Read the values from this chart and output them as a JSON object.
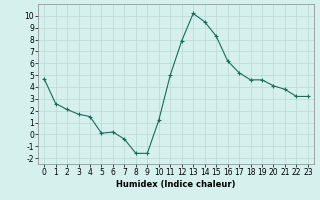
{
  "x": [
    0,
    1,
    2,
    3,
    4,
    5,
    6,
    7,
    8,
    9,
    10,
    11,
    12,
    13,
    14,
    15,
    16,
    17,
    18,
    19,
    20,
    21,
    22,
    23
  ],
  "y": [
    4.7,
    2.6,
    2.1,
    1.7,
    1.5,
    0.1,
    0.2,
    -0.4,
    -1.6,
    -1.6,
    1.2,
    5.0,
    7.9,
    10.2,
    9.5,
    8.3,
    6.2,
    5.2,
    4.6,
    4.6,
    4.1,
    3.8,
    3.2,
    3.2
  ],
  "line_color": "#1a6b5a",
  "marker": "+",
  "marker_color": "#1a6b5a",
  "bg_color": "#d6f0ee",
  "grid_color": "#b8d8d4",
  "xlabel": "Humidex (Indice chaleur)",
  "xlabel_fontsize": 6,
  "tick_fontsize": 5.5,
  "ylim": [
    -2.5,
    11
  ],
  "xlim": [
    -0.5,
    23.5
  ],
  "yticks": [
    -2,
    -1,
    0,
    1,
    2,
    3,
    4,
    5,
    6,
    7,
    8,
    9,
    10
  ],
  "xticks": [
    0,
    1,
    2,
    3,
    4,
    5,
    6,
    7,
    8,
    9,
    10,
    11,
    12,
    13,
    14,
    15,
    16,
    17,
    18,
    19,
    20,
    21,
    22,
    23
  ]
}
